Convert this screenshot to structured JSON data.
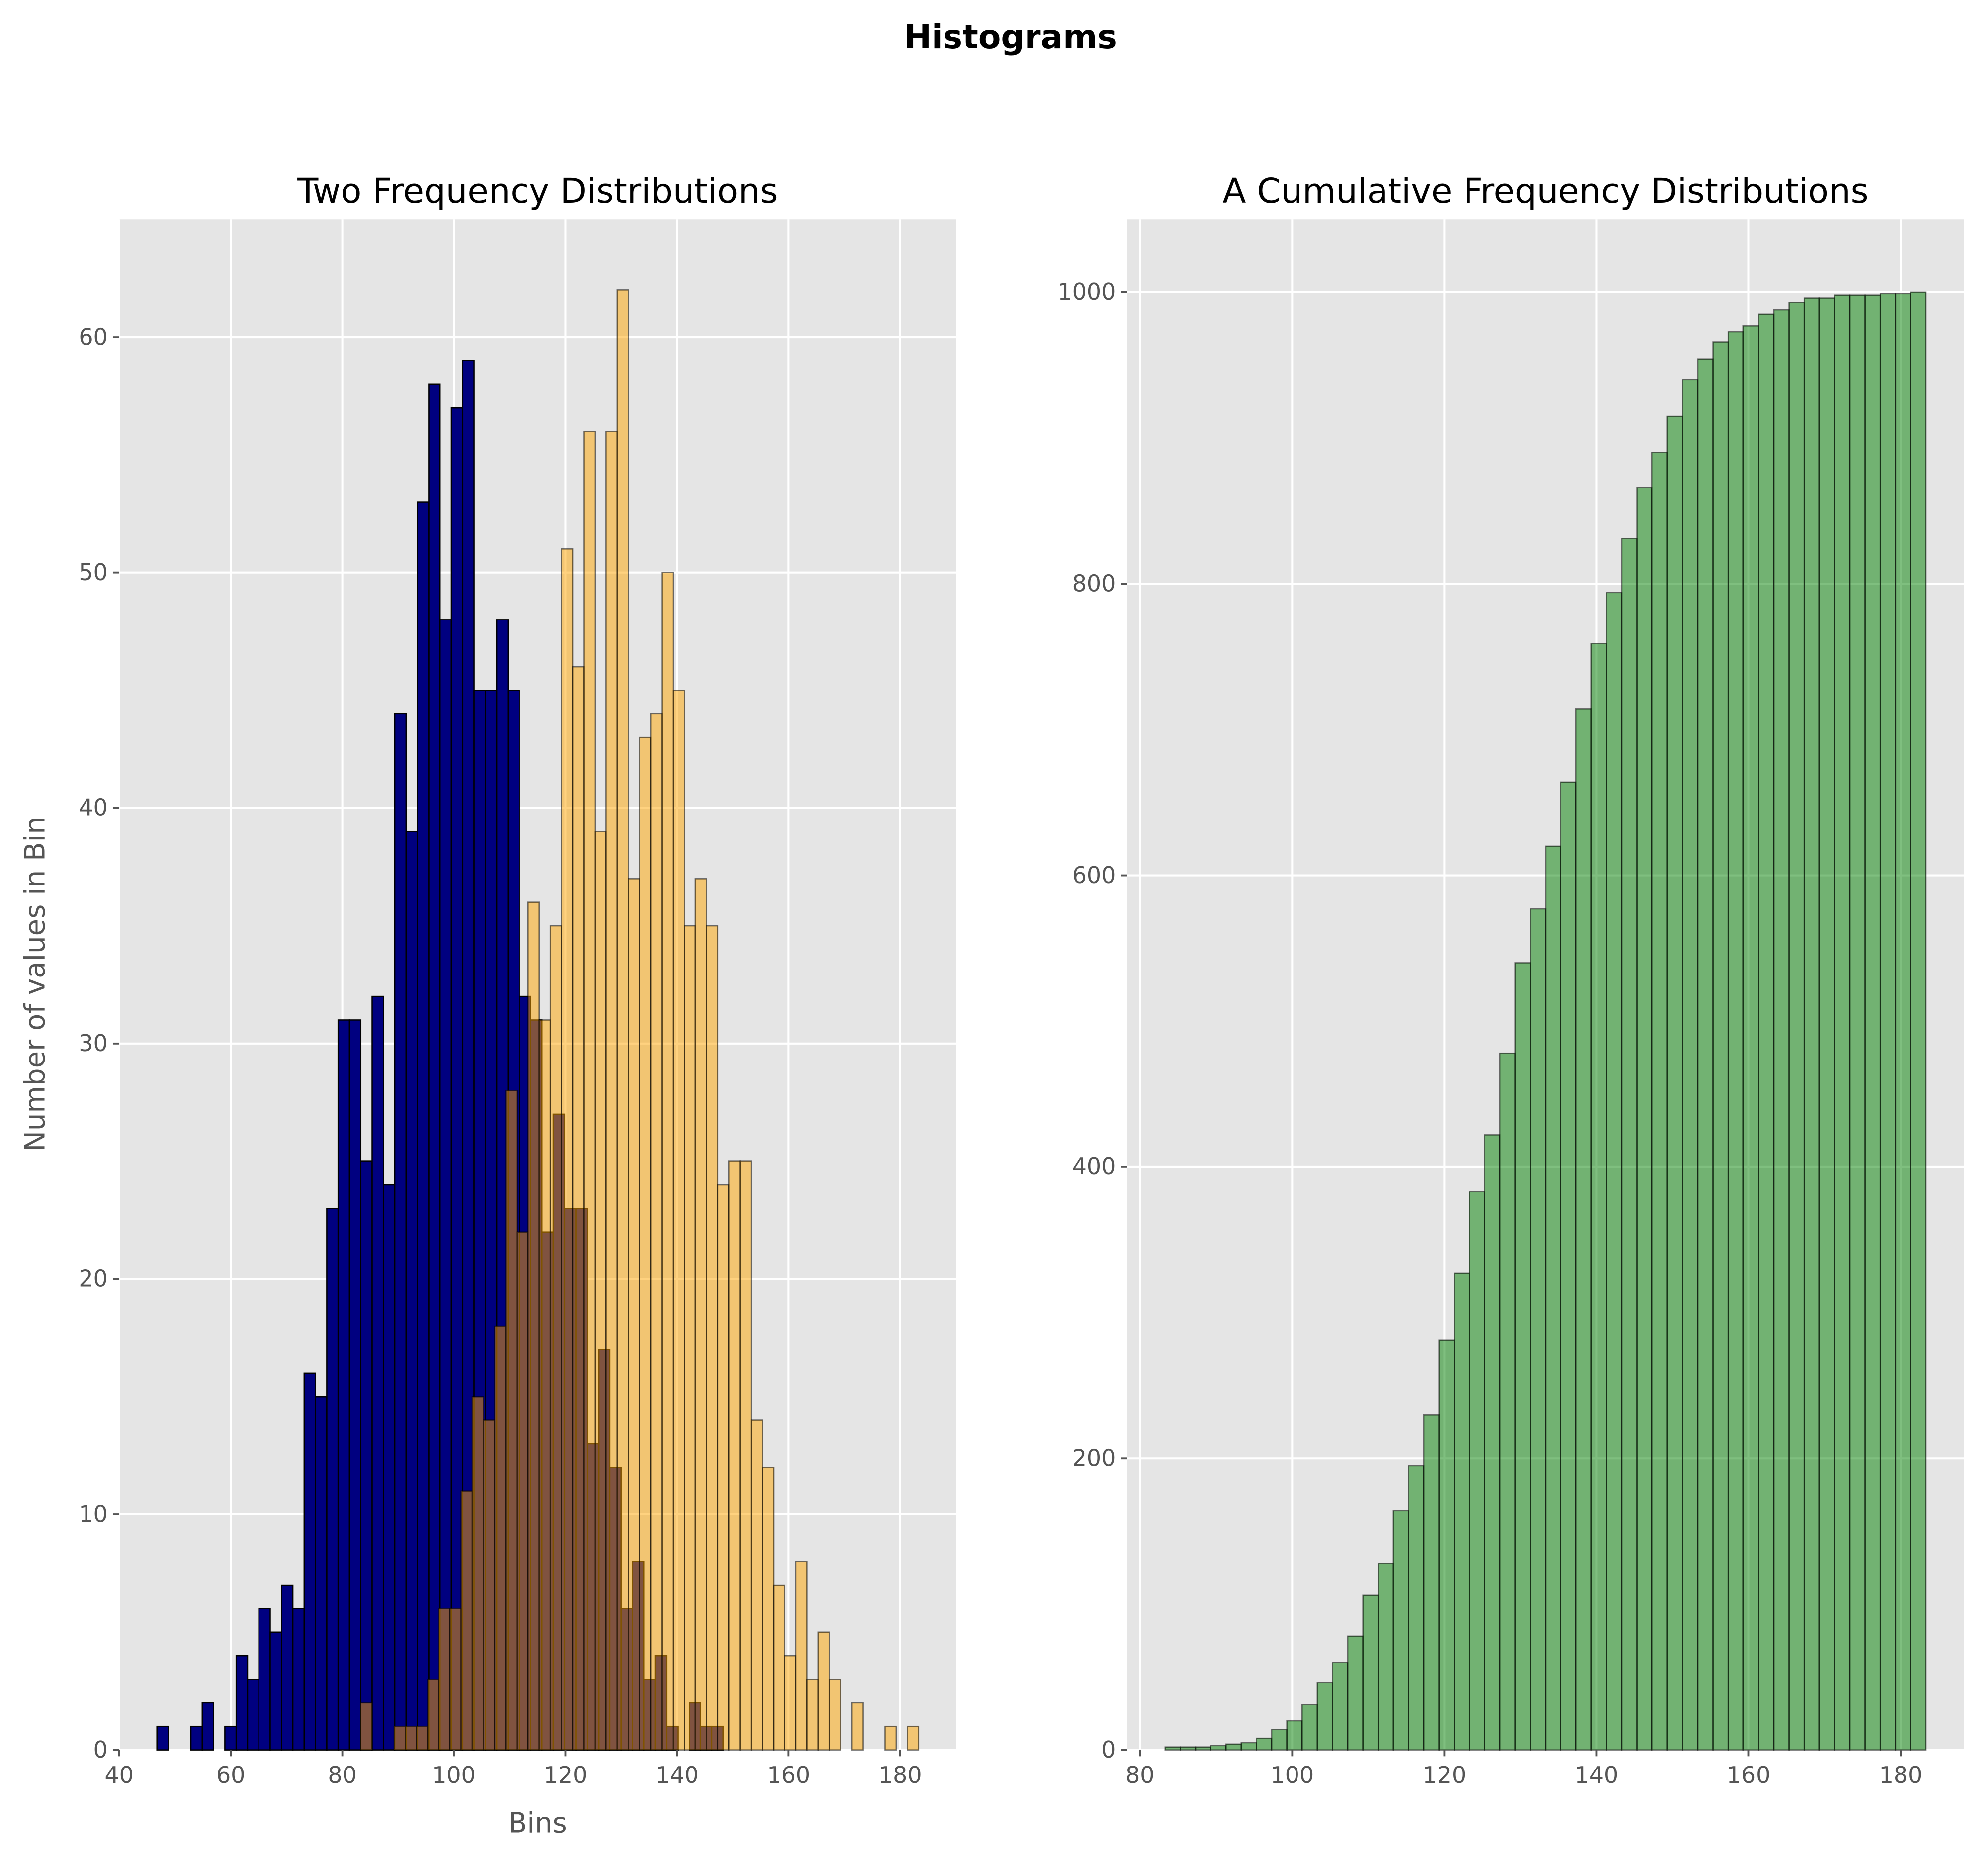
{
  "suptitle": "Histograms",
  "chart_data": [
    {
      "type": "bar",
      "subtype": "histogram-overlay",
      "title": "Two Frequency Distributions",
      "xlabel": "Bins",
      "ylabel": "Number of values in Bin",
      "xlim": [
        40,
        190
      ],
      "ylim": [
        0,
        65
      ],
      "xticks": [
        "40",
        "60",
        "80",
        "100",
        "120",
        "140",
        "160",
        "180"
      ],
      "yticks": [
        "0",
        "10",
        "20",
        "30",
        "40",
        "50",
        "60"
      ],
      "grid": true,
      "series": [
        {
          "color": "#000080",
          "alpha": 1.0,
          "bin_start": 46.77,
          "bin_width": 2.03,
          "counts": [
            1,
            0,
            0,
            1,
            2,
            0,
            1,
            4,
            3,
            6,
            5,
            7,
            6,
            16,
            15,
            23,
            31,
            31,
            25,
            32,
            24,
            44,
            39,
            53,
            58,
            48,
            57,
            59,
            45,
            45,
            48,
            45,
            32,
            31,
            22,
            27,
            23,
            23,
            13,
            17,
            12,
            6,
            8,
            3,
            4,
            1,
            0,
            2,
            1,
            1
          ]
        },
        {
          "color": "#ffa500",
          "alpha": 0.5,
          "bin_start": 83.3,
          "bin_width": 2.0,
          "counts": [
            2,
            0,
            0,
            1,
            1,
            1,
            3,
            6,
            6,
            11,
            15,
            14,
            18,
            28,
            22,
            36,
            31,
            35,
            51,
            46,
            56,
            39,
            56,
            62,
            37,
            43,
            44,
            50,
            45,
            35,
            37,
            35,
            24,
            25,
            25,
            14,
            12,
            7,
            4,
            8,
            3,
            5,
            3,
            0,
            2,
            0,
            0,
            1,
            0,
            1
          ]
        }
      ]
    },
    {
      "type": "bar",
      "subtype": "cumulative-histogram",
      "title": "A Cumulative Frequency Distributions",
      "xlim": [
        78.3,
        188.3
      ],
      "ylim": [
        0,
        1050
      ],
      "xticks": [
        "80",
        "100",
        "120",
        "140",
        "160",
        "180"
      ],
      "yticks": [
        "0",
        "200",
        "400",
        "600",
        "800",
        "1000"
      ],
      "grid": true,
      "series": [
        {
          "color": "#008000",
          "alpha": 0.5,
          "bin_start": 83.3,
          "bin_width": 2.0,
          "values": [
            2,
            2,
            2,
            3,
            4,
            5,
            8,
            14,
            20,
            31,
            46,
            60,
            78,
            106,
            128,
            164,
            195,
            230,
            281,
            327,
            383,
            422,
            478,
            540,
            577,
            620,
            664,
            714,
            759,
            794,
            831,
            866,
            890,
            915,
            940,
            954,
            966,
            973,
            977,
            985,
            988,
            993,
            996,
            996,
            998,
            998,
            998,
            999,
            999,
            1000
          ]
        }
      ]
    }
  ]
}
